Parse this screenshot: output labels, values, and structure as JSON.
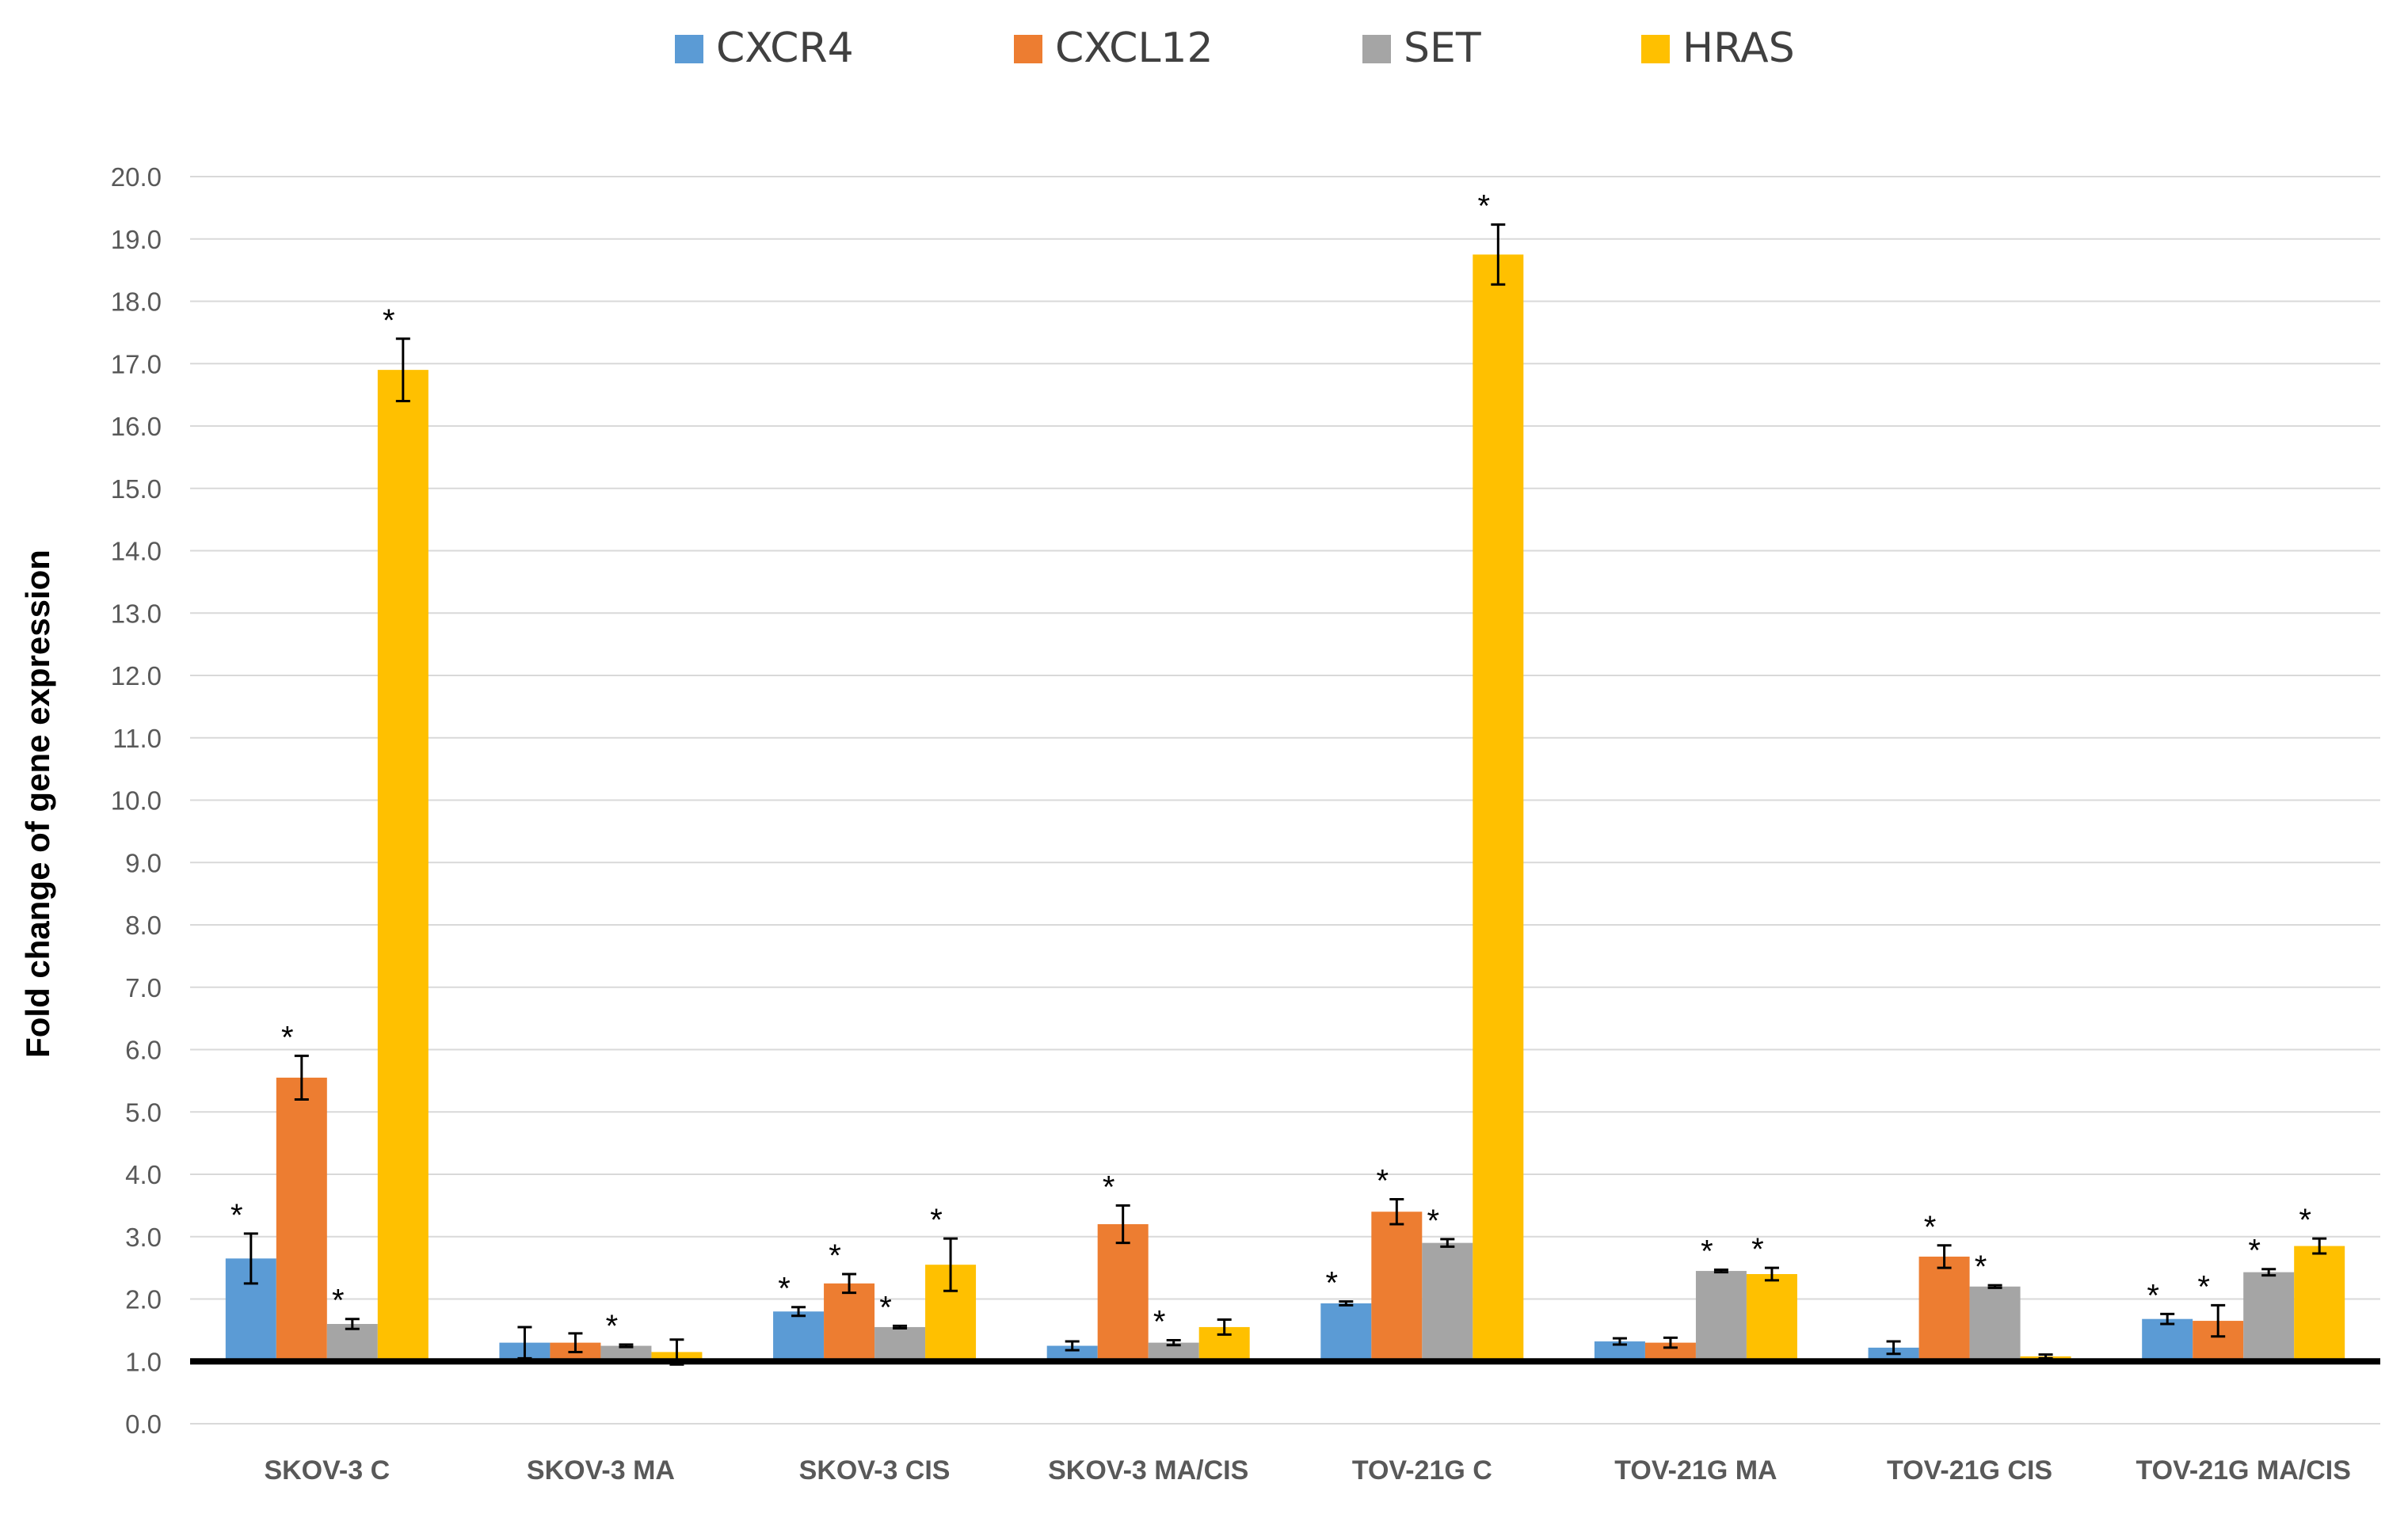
{
  "chart_data": {
    "type": "bar",
    "title": "",
    "xlabel": "",
    "ylabel": "Fold change of gene expression",
    "ylim": [
      0,
      20
    ],
    "baseline": 1.0,
    "y_ticks": [
      "0.0",
      "1.0",
      "2.0",
      "3.0",
      "4.0",
      "5.0",
      "6.0",
      "7.0",
      "8.0",
      "9.0",
      "10.0",
      "11.0",
      "12.0",
      "13.0",
      "14.0",
      "15.0",
      "16.0",
      "17.0",
      "18.0",
      "19.0",
      "20.0"
    ],
    "categories": [
      "SKOV-3 C",
      "SKOV-3 MA",
      "SKOV-3 CIS",
      "SKOV-3 MA/CIS",
      "TOV-21G C",
      "TOV-21G MA",
      "TOV-21G CIS",
      "TOV-21G MA/CIS"
    ],
    "legend_position": "top",
    "grid": true,
    "series": [
      {
        "name": "CXCR4",
        "color": "#5B9BD5",
        "values": [
          2.65,
          1.3,
          1.8,
          1.25,
          1.93,
          1.32,
          1.22,
          1.68
        ],
        "errors": [
          0.4,
          0.25,
          0.07,
          0.07,
          0.03,
          0.05,
          0.1,
          0.08
        ],
        "significant": [
          true,
          false,
          true,
          false,
          true,
          false,
          false,
          true
        ]
      },
      {
        "name": "CXCL12",
        "color": "#ED7D31",
        "values": [
          5.55,
          1.3,
          2.25,
          3.2,
          3.4,
          1.3,
          2.68,
          1.65
        ],
        "errors": [
          0.35,
          0.15,
          0.15,
          0.3,
          0.2,
          0.08,
          0.18,
          0.25
        ],
        "significant": [
          true,
          false,
          true,
          true,
          true,
          false,
          true,
          true
        ]
      },
      {
        "name": "SET",
        "color": "#A5A5A5",
        "values": [
          1.6,
          1.25,
          1.55,
          1.3,
          2.9,
          2.45,
          2.2,
          2.43
        ],
        "errors": [
          0.08,
          0.02,
          0.02,
          0.04,
          0.06,
          0.02,
          0.02,
          0.05
        ],
        "significant": [
          true,
          true,
          true,
          true,
          true,
          true,
          true,
          true
        ]
      },
      {
        "name": "HRAS",
        "color": "#FFC000",
        "values": [
          16.9,
          1.15,
          2.55,
          1.55,
          18.75,
          2.4,
          1.08,
          2.85
        ],
        "errors": [
          0.5,
          0.2,
          0.42,
          0.12,
          0.48,
          0.1,
          0.03,
          0.12
        ],
        "significant": [
          true,
          false,
          true,
          false,
          true,
          true,
          false,
          true
        ]
      }
    ],
    "significance_marker": "*"
  }
}
